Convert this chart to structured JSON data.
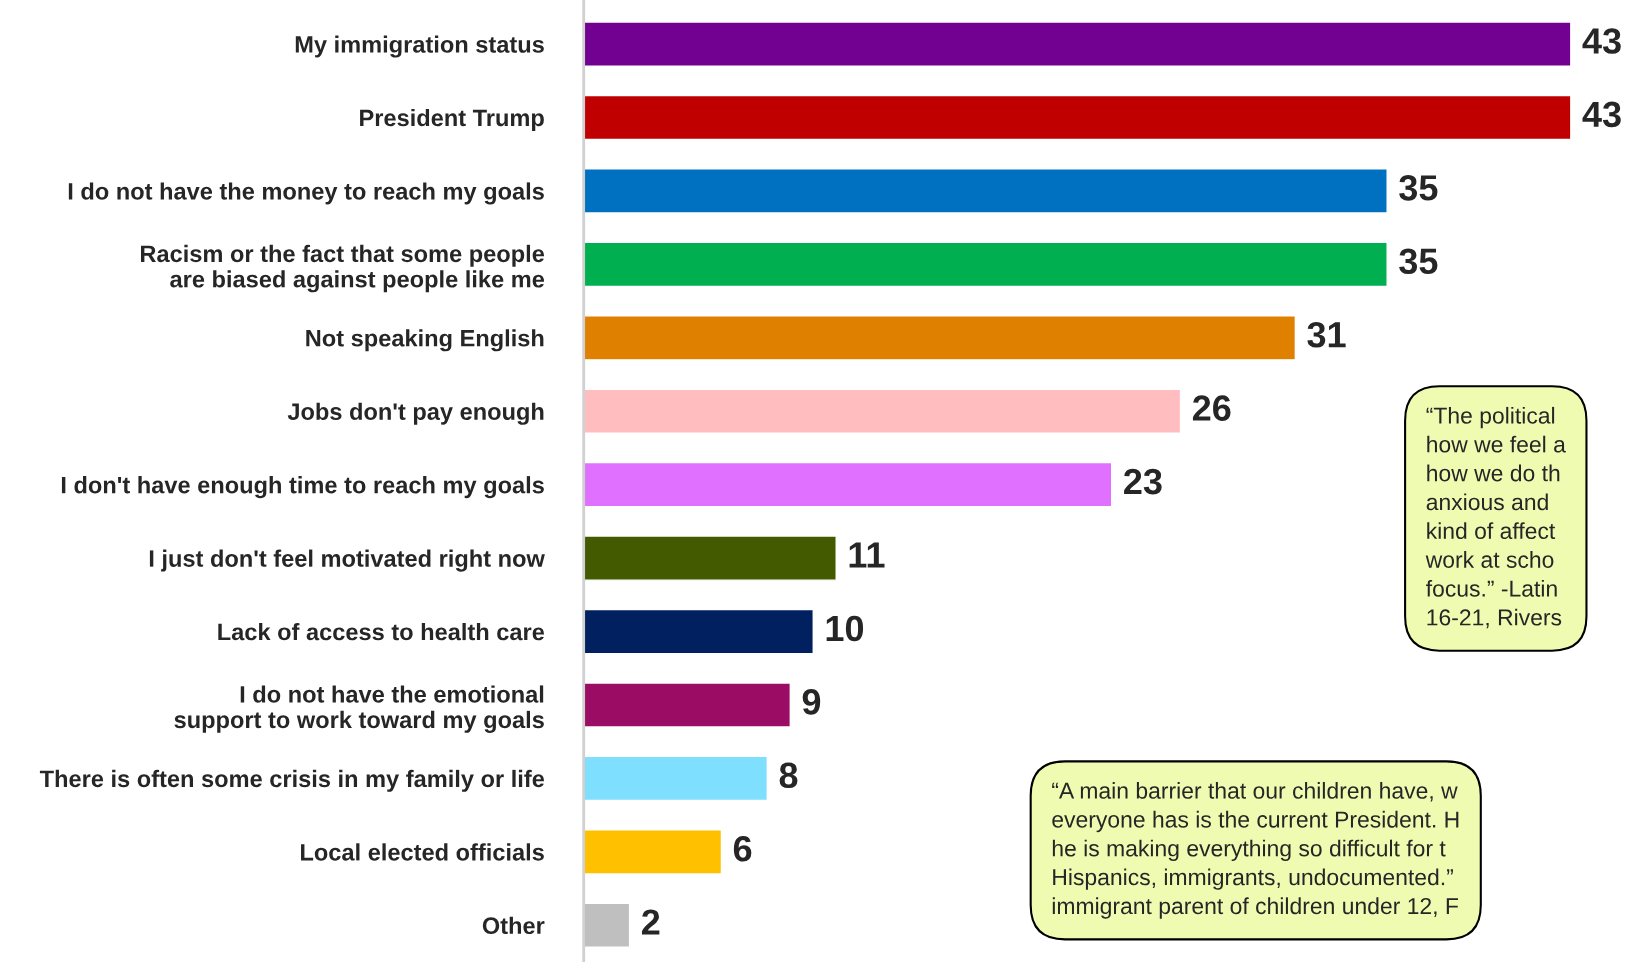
{
  "chart_data": {
    "type": "bar",
    "orientation": "horizontal",
    "data_labels": true,
    "grid": false,
    "categories": [
      "My immigration status",
      "President Trump",
      "I do not have the money to reach my goals",
      "Racism or the fact that some people\nare biased against people like me",
      "Not speaking English",
      "Jobs don't pay enough",
      "I don't have enough time to reach my goals",
      "I just don't feel motivated right now",
      "Lack of access to health care",
      "I do not have the emotional\nsupport to work toward my goals",
      "There is often some crisis in my family or life",
      "Local elected officials",
      "Other"
    ],
    "values": [
      43,
      43,
      35,
      35,
      31,
      26,
      23,
      11,
      10,
      9,
      8,
      6,
      2
    ],
    "colors": [
      "#720091",
      "#c00000",
      "#0070c0",
      "#00b050",
      "#e08000",
      "#ffbdc0",
      "#e070ff",
      "#435a00",
      "#002060",
      "#9b0d65",
      "#7fdfff",
      "#ffc000",
      "#bfbfbf"
    ],
    "annotations": [
      "“The political\nhow we feel a\nhow we do th\nanxious and\nkind of affect\nwork at scho\nfocus.” -Latin\n16-21, Rivers",
      "“A main barrier that our children have, w\neveryone has is the current President. H\nhe is making everything so difficult for t\nHispanics, immigrants, undocumented.”\nimmigrant parent of children under 12, F"
    ]
  }
}
